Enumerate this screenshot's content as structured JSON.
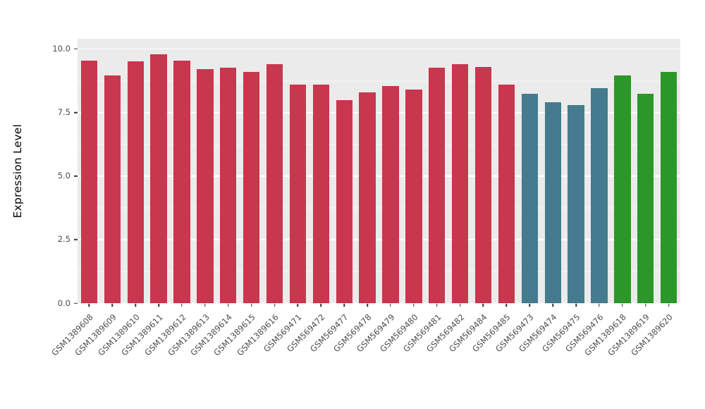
{
  "chart_data": {
    "type": "bar",
    "title": "",
    "xlabel": "",
    "ylabel": "Expression Level",
    "ylim": [
      0,
      10.4
    ],
    "yticks": [
      0.0,
      2.5,
      5.0,
      7.5,
      10.0
    ],
    "ytick_labels": [
      "0.0",
      "2.5",
      "5.0",
      "7.5",
      "10.0"
    ],
    "yticks_minor": [
      1.25,
      3.75,
      6.25,
      8.75
    ],
    "grid": true,
    "legend_position": "none",
    "panel_background": "#EBEBEB",
    "categories": [
      "GSM1389608",
      "GSM1389609",
      "GSM1389610",
      "GSM1389611",
      "GSM1389612",
      "GSM1389613",
      "GSM1389614",
      "GSM1389615",
      "GSM1389616",
      "GSM569471",
      "GSM569472",
      "GSM569477",
      "GSM569478",
      "GSM569479",
      "GSM569480",
      "GSM569481",
      "GSM569482",
      "GSM569484",
      "GSM569485",
      "GSM569473",
      "GSM569474",
      "GSM569475",
      "GSM569476",
      "GSM1389618",
      "GSM1389619",
      "GSM1389620"
    ],
    "values": [
      9.55,
      8.95,
      9.5,
      9.8,
      9.55,
      9.2,
      9.25,
      9.1,
      9.4,
      8.6,
      8.6,
      8.0,
      8.3,
      8.55,
      8.4,
      9.25,
      9.4,
      9.3,
      8.6,
      8.25,
      7.9,
      7.8,
      8.45,
      8.95,
      8.25,
      9.1
    ],
    "groups": [
      "red",
      "red",
      "red",
      "red",
      "red",
      "red",
      "red",
      "red",
      "red",
      "red",
      "red",
      "red",
      "red",
      "red",
      "red",
      "red",
      "red",
      "red",
      "red",
      "blue",
      "blue",
      "blue",
      "blue",
      "green",
      "green",
      "green"
    ],
    "group_colors": {
      "red": "#C8374E",
      "blue": "#457B8E",
      "green": "#2B9728"
    }
  }
}
